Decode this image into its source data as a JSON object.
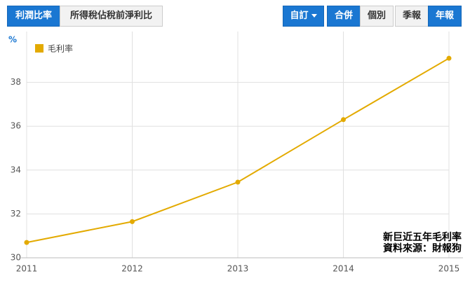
{
  "toolbar": {
    "left": [
      "利潤比率",
      "所得稅佔稅前淨利比"
    ],
    "right": [
      "自訂",
      "合併",
      "個別",
      "季報",
      "年報"
    ]
  },
  "chart_data": {
    "type": "line",
    "y_unit": "%",
    "x": [
      2011,
      2012,
      2013,
      2014,
      2015
    ],
    "series": [
      {
        "name": "毛利率",
        "color": "#e3aa00",
        "values": [
          30.7,
          31.65,
          33.45,
          36.3,
          39.1
        ]
      }
    ],
    "xlim": [
      2011,
      2015
    ],
    "xticks": [
      2011,
      2012,
      2013,
      2014,
      2015
    ],
    "ylim": [
      30,
      40
    ],
    "yticks": [
      30,
      32,
      34,
      36,
      38
    ],
    "grid": true,
    "annotations": [
      "新巨近五年毛利率",
      "資料來源：財報狗"
    ]
  }
}
